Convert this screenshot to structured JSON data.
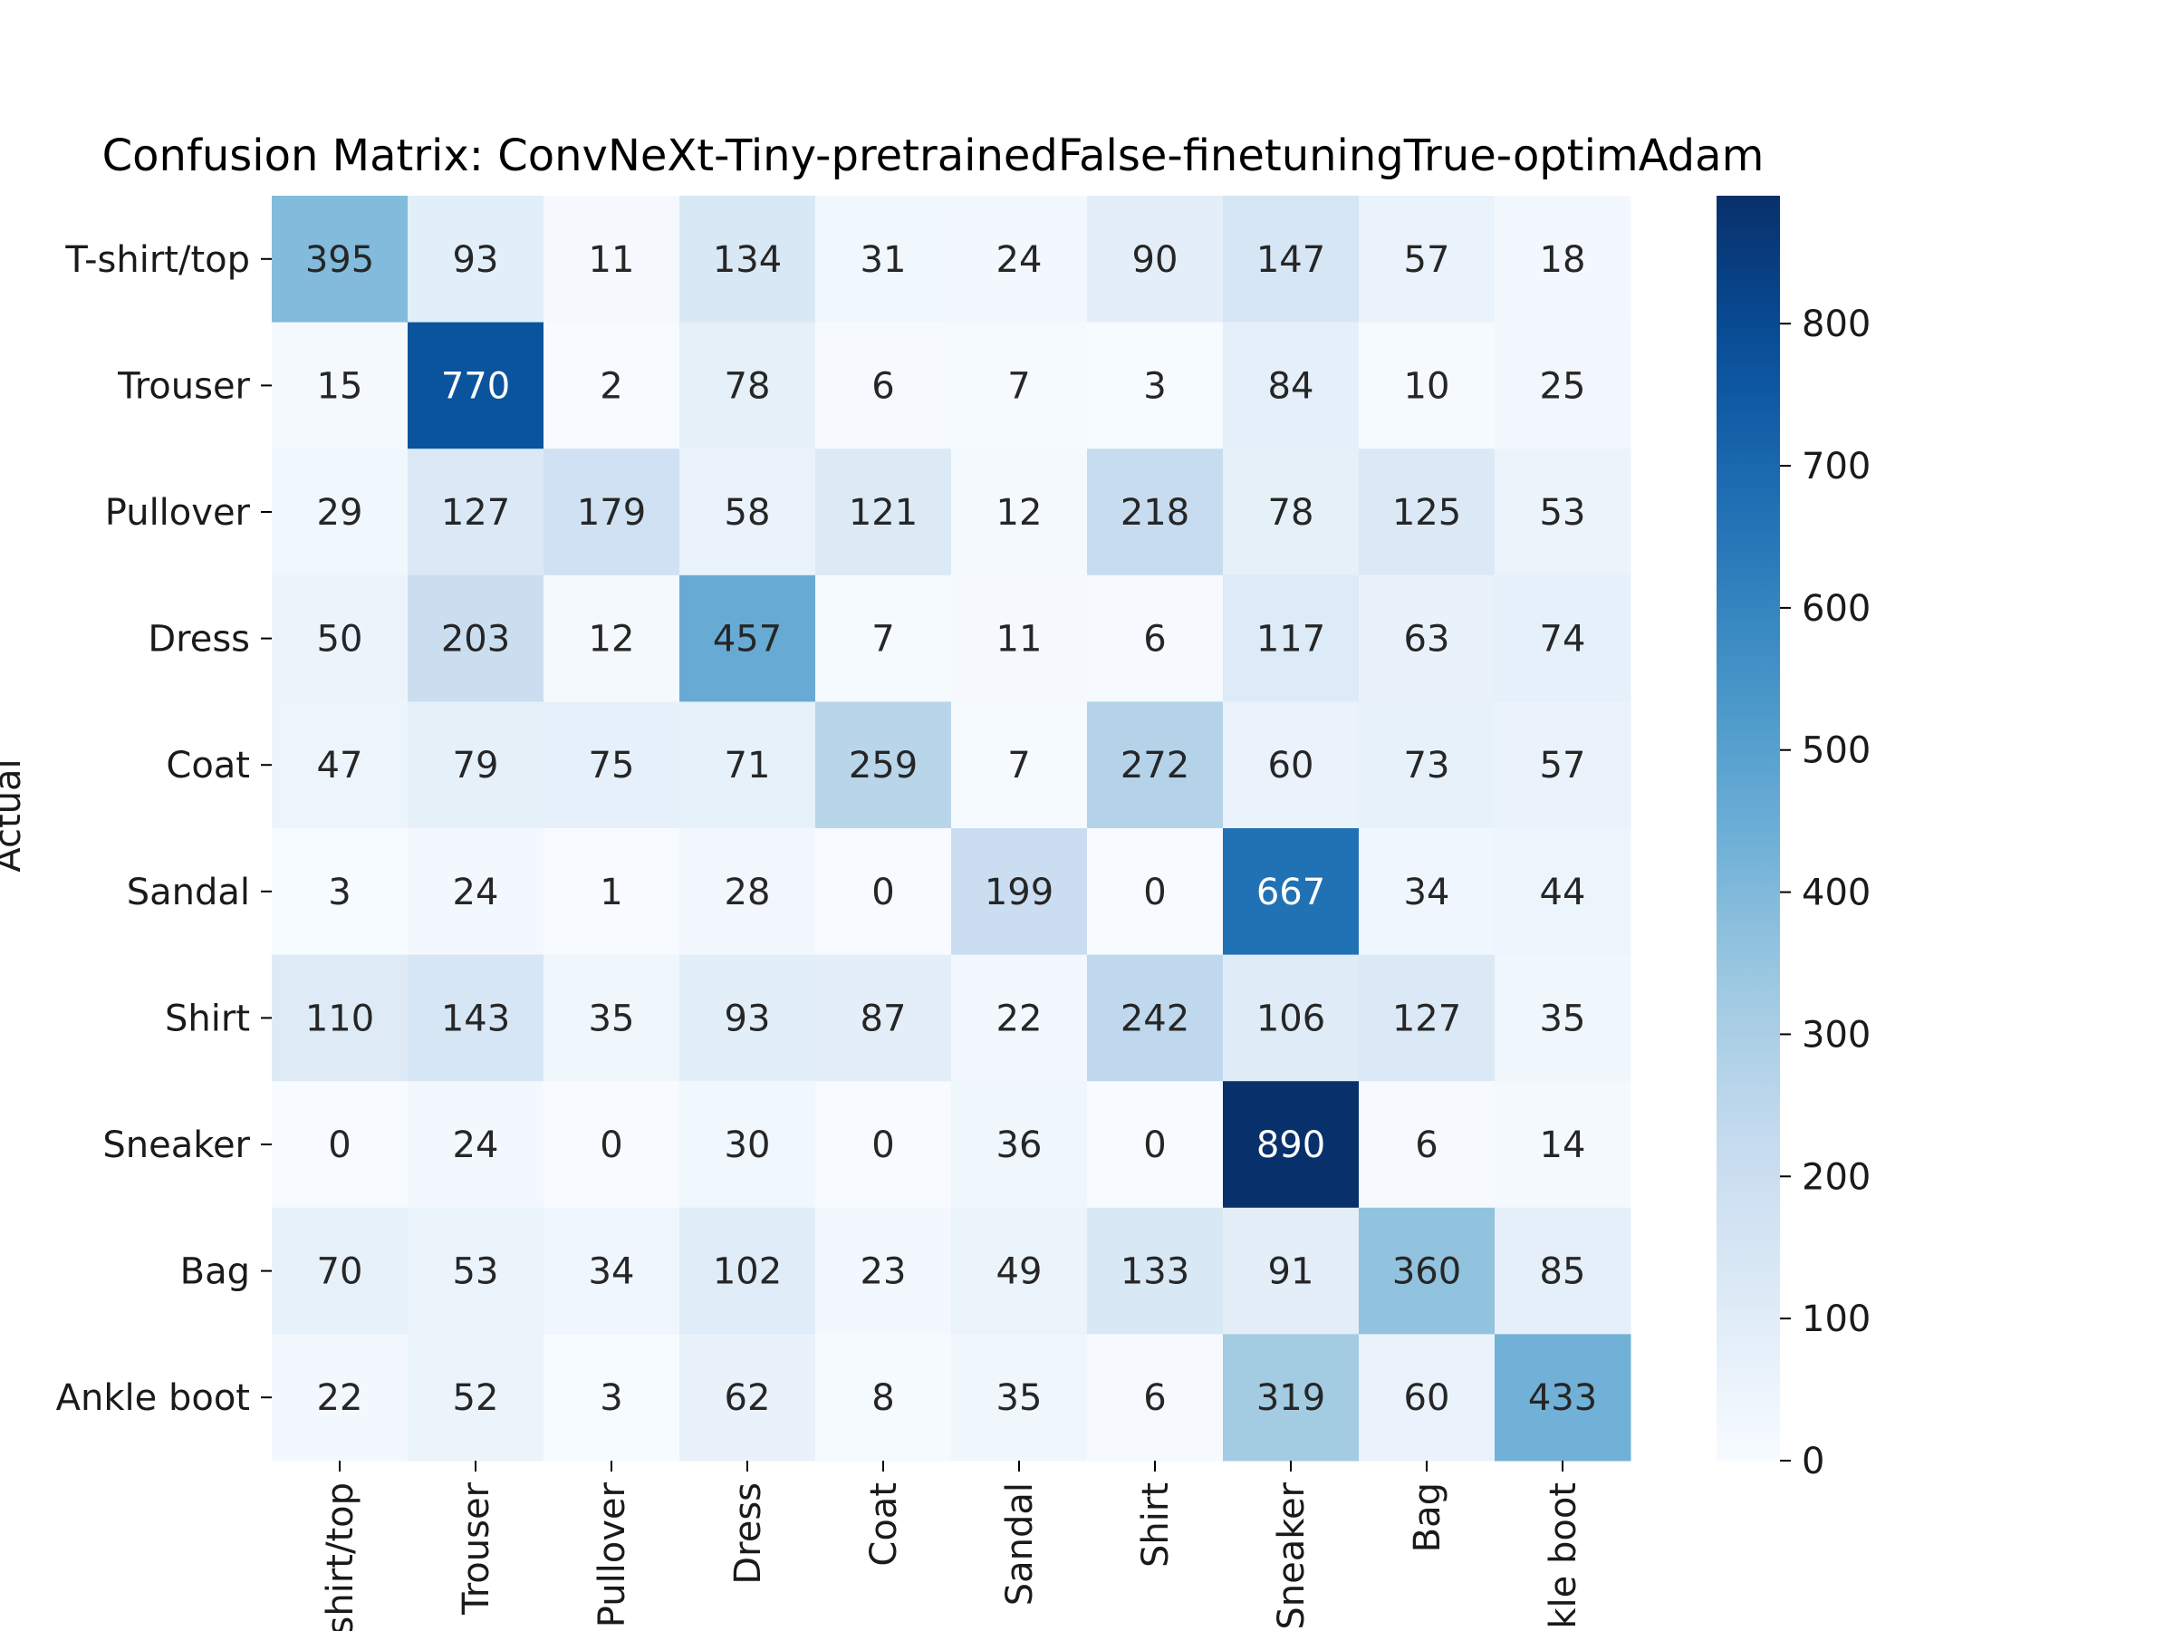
{
  "chart_data": {
    "type": "heatmap",
    "title": "Confusion Matrix: ConvNeXt-Tiny-pretrainedFalse-finetuningTrue-optimAdam",
    "ylabel": "Actual",
    "xlabel": "",
    "row_labels": [
      "T-shirt/top",
      "Trouser",
      "Pullover",
      "Dress",
      "Coat",
      "Sandal",
      "Shirt",
      "Sneaker",
      "Bag",
      "Ankle boot"
    ],
    "col_labels": [
      "T-shirt/top",
      "Trouser",
      "Pullover",
      "Dress",
      "Coat",
      "Sandal",
      "Shirt",
      "Sneaker",
      "Bag",
      "Ankle boot"
    ],
    "values": [
      [
        395,
        93,
        11,
        134,
        31,
        24,
        90,
        147,
        57,
        18
      ],
      [
        15,
        770,
        2,
        78,
        6,
        7,
        3,
        84,
        10,
        25
      ],
      [
        29,
        127,
        179,
        58,
        121,
        12,
        218,
        78,
        125,
        53
      ],
      [
        50,
        203,
        12,
        457,
        7,
        11,
        6,
        117,
        63,
        74
      ],
      [
        47,
        79,
        75,
        71,
        259,
        7,
        272,
        60,
        73,
        57
      ],
      [
        3,
        24,
        1,
        28,
        0,
        199,
        0,
        667,
        34,
        44
      ],
      [
        110,
        143,
        35,
        93,
        87,
        22,
        242,
        106,
        127,
        35
      ],
      [
        0,
        24,
        0,
        30,
        0,
        36,
        0,
        890,
        6,
        14
      ],
      [
        70,
        53,
        34,
        102,
        23,
        49,
        133,
        91,
        360,
        85
      ],
      [
        22,
        52,
        3,
        62,
        8,
        35,
        6,
        319,
        60,
        433
      ]
    ],
    "colorbar": {
      "range": [
        0,
        890
      ],
      "ticks": [
        0,
        100,
        200,
        300,
        400,
        500,
        600,
        700,
        800
      ],
      "colormap": "Blues"
    },
    "grid": false,
    "legend": "none"
  }
}
